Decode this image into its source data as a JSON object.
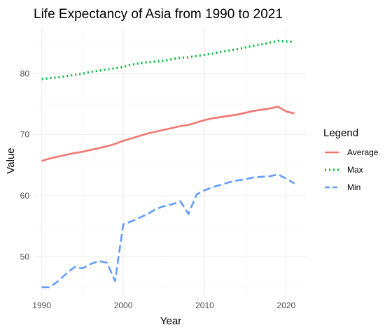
{
  "chart_data": {
    "type": "line",
    "title": "Life Expectancy of Asia from 1990 to 2021",
    "xlabel": "Year",
    "ylabel": "Value",
    "xlim": [
      1989,
      2022.5
    ],
    "ylim": [
      43.5,
      87.5
    ],
    "x_ticks": [
      1990,
      2000,
      2010,
      2020
    ],
    "y_ticks": [
      50,
      60,
      70,
      80
    ],
    "grid": true,
    "legend_title": "Legend",
    "legend_position": "right",
    "x": [
      1990,
      1991,
      1992,
      1993,
      1994,
      1995,
      1996,
      1997,
      1998,
      1999,
      2000,
      2001,
      2002,
      2003,
      2004,
      2005,
      2006,
      2007,
      2008,
      2009,
      2010,
      2011,
      2012,
      2013,
      2014,
      2015,
      2016,
      2017,
      2018,
      2019,
      2020,
      2021
    ],
    "series": [
      {
        "name": "Average",
        "color": "#f07870",
        "dash": "solid",
        "values": [
          65.7,
          66.1,
          66.4,
          66.7,
          67.0,
          67.2,
          67.5,
          67.8,
          68.1,
          68.5,
          69.0,
          69.4,
          69.8,
          70.2,
          70.5,
          70.8,
          71.1,
          71.4,
          71.6,
          72.0,
          72.4,
          72.7,
          72.9,
          73.1,
          73.3,
          73.6,
          73.9,
          74.1,
          74.3,
          74.6,
          73.8,
          73.5
        ]
      },
      {
        "name": "Max",
        "color": "#00ba38",
        "dash": "dotted",
        "values": [
          79.1,
          79.3,
          79.4,
          79.6,
          79.8,
          80.0,
          80.3,
          80.5,
          80.7,
          80.9,
          81.1,
          81.5,
          81.7,
          81.9,
          82.0,
          82.1,
          82.4,
          82.6,
          82.7,
          82.9,
          83.1,
          83.3,
          83.6,
          83.8,
          84.0,
          84.3,
          84.6,
          84.8,
          85.1,
          85.4,
          85.3,
          85.2
        ]
      },
      {
        "name": "Min",
        "color": "#619cff",
        "dash": "dashed",
        "values": [
          45.0,
          45.0,
          46.0,
          47.2,
          48.3,
          48.1,
          48.8,
          49.3,
          49.0,
          46.0,
          55.3,
          55.8,
          56.4,
          57.0,
          57.8,
          58.3,
          58.6,
          59.1,
          57.0,
          60.2,
          60.9,
          61.4,
          61.8,
          62.2,
          62.5,
          62.7,
          63.0,
          63.1,
          63.2,
          63.5,
          62.8,
          62.0
        ]
      }
    ]
  }
}
